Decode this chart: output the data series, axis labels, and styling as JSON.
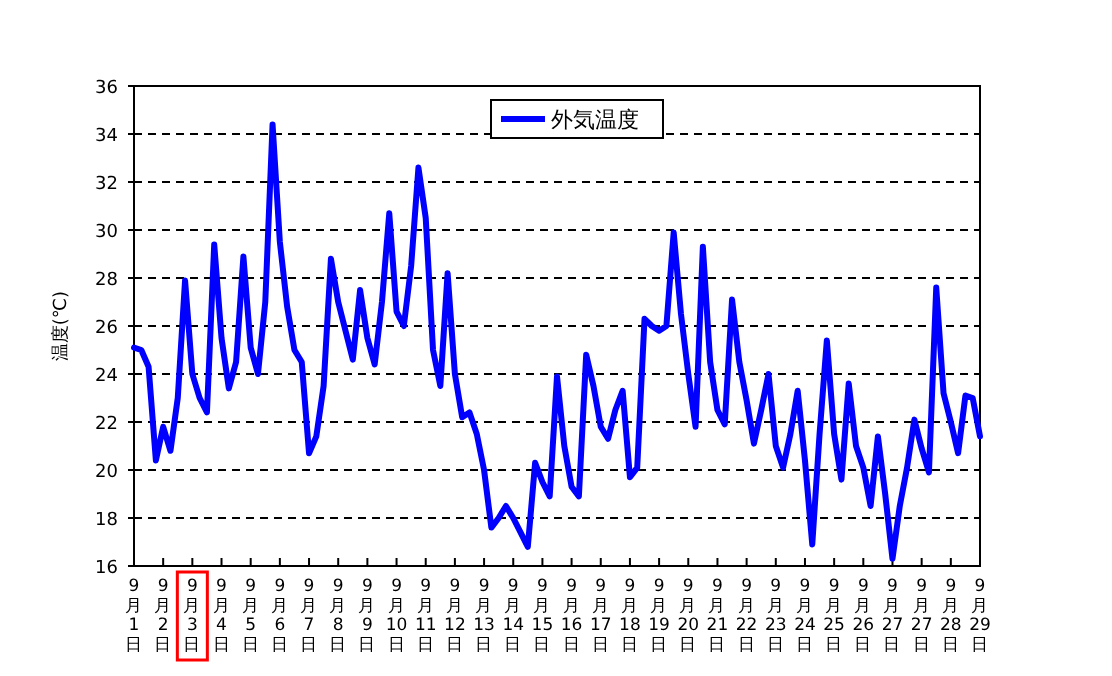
{
  "chart_data": {
    "type": "line",
    "ylabel": "温度(℃)",
    "categories": [
      "9月1日",
      null,
      null,
      null,
      "9月2日",
      null,
      null,
      null,
      "9月3日",
      null,
      null,
      null,
      "9月4日",
      null,
      null,
      null,
      "9月5日",
      null,
      null,
      null,
      "9月6日",
      null,
      null,
      null,
      "9月7日",
      null,
      null,
      null,
      "9月8日",
      null,
      null,
      null,
      "9月9日",
      null,
      null,
      null,
      "9月10日",
      null,
      null,
      null,
      "9月11日",
      null,
      null,
      null,
      "9月12日",
      null,
      null,
      null,
      "9月13日",
      null,
      null,
      null,
      "9月14日",
      null,
      null,
      null,
      "9月15日",
      null,
      null,
      null,
      "9月16日",
      null,
      null,
      null,
      "9月17日",
      null,
      null,
      null,
      "9月18日",
      null,
      null,
      null,
      "9月19日",
      null,
      null,
      null,
      "9月20日",
      null,
      null,
      null,
      "9月21日",
      null,
      null,
      null,
      "9月22日",
      null,
      null,
      null,
      "9月23日",
      null,
      null,
      null,
      "9月24日",
      null,
      null,
      null,
      "9月25日",
      null,
      null,
      null,
      "9月26日",
      null,
      null,
      null,
      "9月27日",
      null,
      null,
      null,
      "9月27日",
      null,
      null,
      null,
      "9月28日",
      null,
      null,
      null,
      "9月29日"
    ],
    "ylim": [
      16,
      36
    ],
    "yticks": [
      16,
      18,
      20,
      22,
      24,
      26,
      28,
      30,
      32,
      34,
      36
    ],
    "grid": "y",
    "legend": "top",
    "marker": "none",
    "line_style": "solid",
    "series": [
      {
        "name": "外気温度",
        "color": "#0000ff",
        "values": [
          25.1,
          25.0,
          24.3,
          20.4,
          21.8,
          20.8,
          23.0,
          27.9,
          24.0,
          23.0,
          22.4,
          29.4,
          25.5,
          23.4,
          24.5,
          28.9,
          25.1,
          24.0,
          27.0,
          34.4,
          29.5,
          26.8,
          25.0,
          24.5,
          20.7,
          21.4,
          23.5,
          28.8,
          27.0,
          25.8,
          24.6,
          27.5,
          25.5,
          24.4,
          27.0,
          30.7,
          26.6,
          26.0,
          28.5,
          32.6,
          30.5,
          25.0,
          23.5,
          28.2,
          24.0,
          22.2,
          22.4,
          21.5,
          20.0,
          17.6,
          18.0,
          18.5,
          18.0,
          17.4,
          16.8,
          20.3,
          19.5,
          18.9,
          23.9,
          21.0,
          19.3,
          18.9,
          24.8,
          23.5,
          21.8,
          21.3,
          22.5,
          23.3,
          19.7,
          20.1,
          26.3,
          26.0,
          25.8,
          26.0,
          29.9,
          26.5,
          24.0,
          21.8,
          29.3,
          24.5,
          22.5,
          21.9,
          27.1,
          24.5,
          22.9,
          21.1,
          22.5,
          24.0,
          21.0,
          20.1,
          21.5,
          23.3,
          20.4,
          16.9,
          21.5,
          25.4,
          21.5,
          19.6,
          23.6,
          21.0,
          20.1,
          18.5,
          21.4,
          19.0,
          16.3,
          18.5,
          20.1,
          22.1,
          20.9,
          19.9,
          27.6,
          23.2,
          22.0,
          20.7,
          23.1,
          23.0,
          21.4
        ]
      }
    ]
  }
}
